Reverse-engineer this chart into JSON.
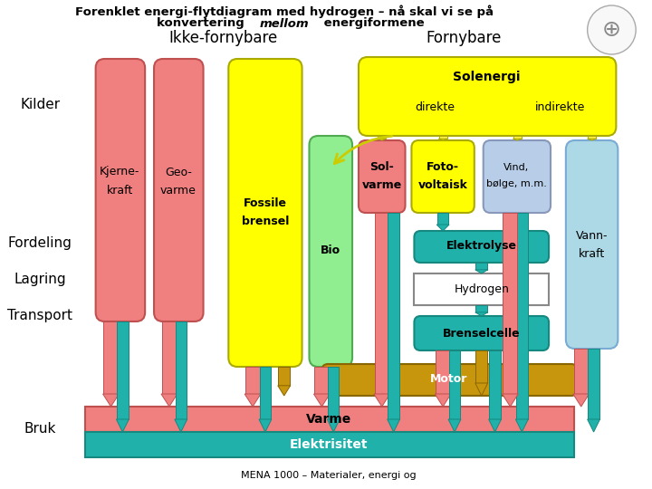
{
  "title_line1": "Forenklet energi-flytdiagram med hydrogen – nå skal vi se på",
  "title_line2": "konvertering mellom energiformene",
  "label_ikke": "Ikke-fornybare",
  "label_fornybare": "Fornybare",
  "label_kilder": "Kilder",
  "label_fordeling": "Fordeling",
  "label_lagring": "Lagring",
  "label_transport": "Transport",
  "label_bruk": "Bruk",
  "footer": "MENA 1000 – Materialer, energi og",
  "bg_color": "#ffffff",
  "salmon": "#f08080",
  "yellow": "#ffff00",
  "light_green": "#90ee90",
  "teal": "#20b2aa",
  "gold": "#c8960c",
  "light_blue": "#add8e6",
  "pale_blue": "#b8cee8",
  "white": "#ffffff"
}
